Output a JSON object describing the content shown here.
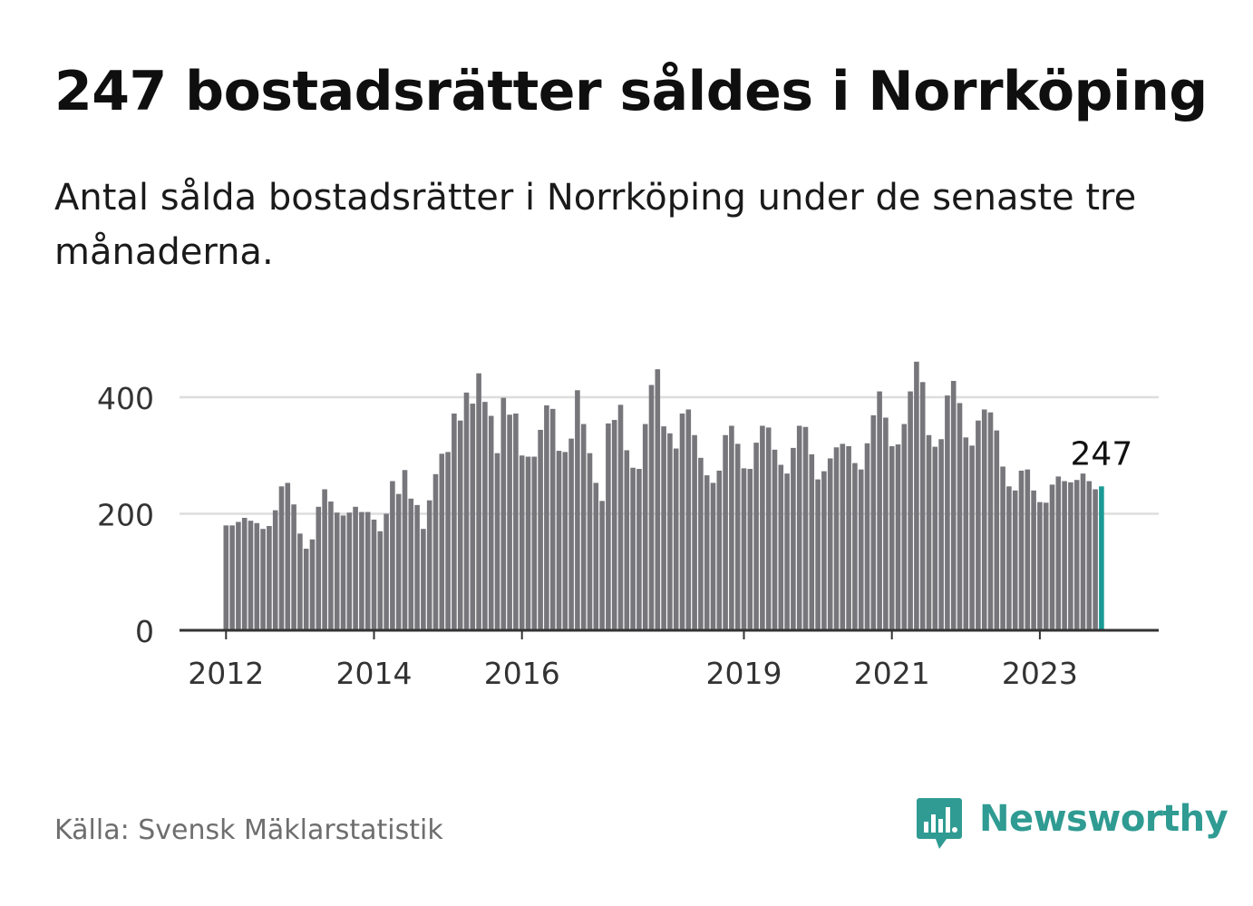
{
  "title": "247 bostadsrätter såldes i Norrköping",
  "subtitle": "Antal sålda bostadsrätter i Norrköping under de senaste tre månaderna.",
  "source": "Källa: Svensk Mäklarstatistik",
  "brand": {
    "name": "Newsworthy",
    "color": "#2f9b92"
  },
  "colors": {
    "bar": "#77767b",
    "highlight": "#1a9a94",
    "grid": "#dddddd",
    "axis": "#333333"
  },
  "chart_data": {
    "type": "bar",
    "title": "247 bostadsrätter såldes i Norrköping",
    "xlabel": "",
    "ylabel": "",
    "ylim": [
      0,
      400
    ],
    "yticks": [
      0,
      200,
      400
    ],
    "xticks": [
      {
        "label": "2012",
        "index": 0
      },
      {
        "label": "2014",
        "index": 24
      },
      {
        "label": "2016",
        "index": 48
      },
      {
        "label": "2019",
        "index": 84
      },
      {
        "label": "2021",
        "index": 108
      },
      {
        "label": "2023",
        "index": 132
      }
    ],
    "start": "2012-01",
    "highlight_label": "247",
    "values": [
      180,
      180,
      186,
      193,
      188,
      184,
      174,
      179,
      206,
      247,
      253,
      216,
      166,
      140,
      156,
      212,
      242,
      221,
      202,
      197,
      202,
      212,
      203,
      203,
      190,
      170,
      200,
      256,
      234,
      275,
      226,
      215,
      174,
      223,
      268,
      303,
      306,
      372,
      360,
      408,
      389,
      441,
      392,
      368,
      304,
      399,
      370,
      372,
      300,
      298,
      298,
      344,
      386,
      380,
      308,
      306,
      329,
      412,
      354,
      304,
      253,
      222,
      355,
      361,
      387,
      309,
      279,
      277,
      354,
      421,
      448,
      350,
      338,
      312,
      372,
      379,
      335,
      296,
      266,
      253,
      274,
      335,
      351,
      320,
      278,
      277,
      322,
      351,
      348,
      310,
      284,
      269,
      313,
      351,
      349,
      302,
      259,
      273,
      295,
      314,
      320,
      316,
      287,
      276,
      321,
      369,
      410,
      365,
      316,
      319,
      354,
      410,
      461,
      426,
      335,
      315,
      328,
      403,
      428,
      390,
      331,
      317,
      360,
      379,
      374,
      343,
      281,
      247,
      240,
      274,
      276,
      240,
      220,
      219,
      250,
      264,
      256,
      254,
      258,
      269,
      256,
      242,
      247
    ]
  }
}
